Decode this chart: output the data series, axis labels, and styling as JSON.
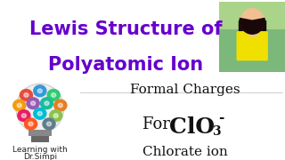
{
  "bg_color": "#ffffff",
  "title_line1": "Lewis Structure of",
  "title_line2": "Polyatomic Ion",
  "title_color": "#6600cc",
  "title_fontsize": 15,
  "subtitle1": "Formal Charges",
  "subtitle1_fontsize": 11,
  "subtitle2_prefix": "For ",
  "subtitle2_formula": "ClO",
  "subtitle2_sub": "3",
  "subtitle2_super": "-",
  "subtitle2_fontsize": 13,
  "subtitle3": "Chlorate ion",
  "subtitle3_fontsize": 11,
  "text_color": "#111111",
  "watermark1": "Learning with",
  "watermark2": "Dr.Simpi",
  "watermark_fontsize": 6.5,
  "watermark_color": "#222222",
  "photo_colors": [
    "#7cb87a",
    "#f5c5a0",
    "#ffee00",
    "#1a0a00"
  ],
  "bulb_colors": [
    "#e74c3c",
    "#3498db",
    "#2ecc71",
    "#f39c12",
    "#9b59b6",
    "#1abc9c",
    "#e67e22",
    "#e91e63",
    "#00bcd4",
    "#8bc34a",
    "#ff5722",
    "#607d8b"
  ]
}
